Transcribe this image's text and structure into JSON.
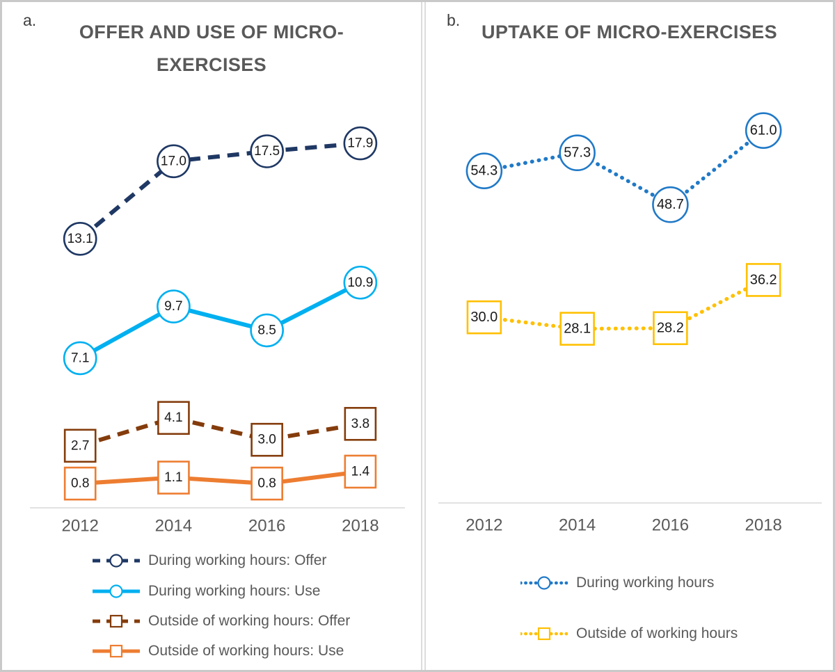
{
  "page": {
    "background": "#FFFFFF",
    "border_color": "#C9C9C9",
    "divider_color": "#DCDCDC"
  },
  "chart_data": [
    {
      "type": "line",
      "panel_label": "a.",
      "title": "OFFER AND USE OF MICRO-EXERCISES",
      "title_lines": [
        "OFFER AND USE OF MICRO-",
        "EXERCISES"
      ],
      "categories": [
        "2012",
        "2014",
        "2016",
        "2018"
      ],
      "series": [
        {
          "name": "During working hours: Offer",
          "values": [
            13.1,
            17.0,
            17.5,
            17.9
          ],
          "color": "#1F3864",
          "line_style": "dashed",
          "marker": "circle"
        },
        {
          "name": "During working hours: Use",
          "values": [
            7.1,
            9.7,
            8.5,
            10.9
          ],
          "color": "#00B0F0",
          "line_style": "solid",
          "marker": "circle"
        },
        {
          "name": "Outside of working hours: Offer",
          "values": [
            2.7,
            4.1,
            3.0,
            3.8
          ],
          "color": "#843C0C",
          "line_style": "dashed",
          "marker": "square"
        },
        {
          "name": "Outside of working hours: Use",
          "values": [
            0.8,
            1.1,
            0.8,
            1.4
          ],
          "color": "#ED7D31",
          "line_style": "solid",
          "marker": "square"
        }
      ],
      "ylim": [
        0,
        20
      ],
      "xlabel": "",
      "ylabel": "",
      "grid": false,
      "data_labels": "one_decimal",
      "legend_position": "bottom",
      "axis_color": "#D9D9D9",
      "tick_color": "#595959",
      "data_label_color": "#1A1A1A",
      "title_color": "#595959"
    },
    {
      "type": "line",
      "panel_label": "b.",
      "title": "UPTAKE OF MICRO-EXERCISES",
      "title_lines": [
        "UPTAKE OF MICRO-EXERCISES"
      ],
      "categories": [
        "2012",
        "2014",
        "2016",
        "2018"
      ],
      "series": [
        {
          "name": "During working hours",
          "values": [
            54.3,
            57.3,
            48.7,
            61.0
          ],
          "color": "#2079C7",
          "line_style": "dotted",
          "marker": "circle"
        },
        {
          "name": "Outside of working hours",
          "values": [
            30.0,
            28.1,
            28.2,
            36.2
          ],
          "color": "#FFC000",
          "line_style": "dotted",
          "marker": "square"
        }
      ],
      "ylim": [
        0,
        65
      ],
      "xlabel": "",
      "ylabel": "",
      "grid": false,
      "data_labels": "one_decimal",
      "legend_position": "bottom",
      "axis_color": "#D9D9D9",
      "tick_color": "#595959",
      "data_label_color": "#1A1A1A",
      "title_color": "#595959"
    }
  ]
}
